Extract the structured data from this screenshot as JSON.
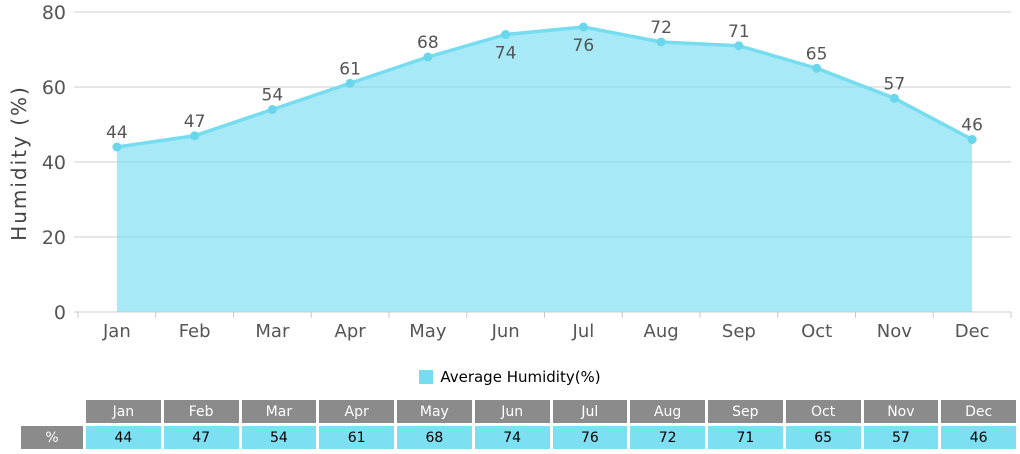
{
  "chart_data": {
    "type": "area",
    "title": "",
    "categories": [
      "Jan",
      "Feb",
      "Mar",
      "Apr",
      "May",
      "Jun",
      "Jul",
      "Aug",
      "Sep",
      "Oct",
      "Nov",
      "Dec"
    ],
    "series": [
      {
        "name": "Average Humidity(%)",
        "values": [
          44,
          47,
          54,
          61,
          68,
          74,
          76,
          72,
          71,
          65,
          57,
          46
        ]
      }
    ],
    "xlabel": "",
    "ylabel": "Humidity (%)",
    "ylim": [
      0,
      80
    ],
    "yticks": [
      80,
      60,
      40,
      20,
      0
    ],
    "grid": true,
    "legend_position": "bottom-center",
    "colors": {
      "area_fill": "#7DDFF2",
      "area_fill_opacity": 0.68,
      "line": "#76DCEF",
      "marker": "#69D6EC",
      "grid": "#cccccc",
      "axis": "#c8c8c8",
      "label": "#555555",
      "axis_title": "#444444",
      "table_header_bg": "#8B8B8B",
      "table_header_text": "#ffffff",
      "table_value_bg": "#7DE0F2",
      "table_value_text": "#000000"
    }
  },
  "table": {
    "row_label": "%"
  }
}
